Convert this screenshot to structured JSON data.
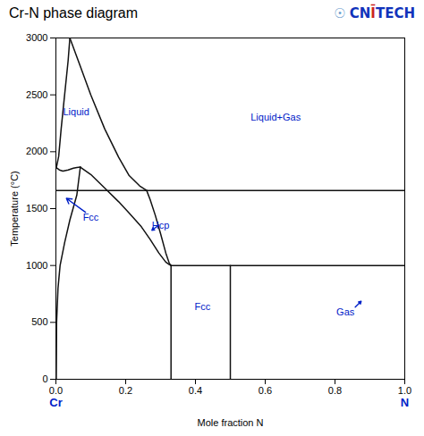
{
  "chart_data": {
    "type": "line",
    "title": "Cr-N phase diagram",
    "xlabel": "Mole fraction N",
    "ylabel": "Temperature (°C)",
    "xlim": [
      0,
      1.0
    ],
    "ylim": [
      0,
      3000
    ],
    "xticks": [
      {
        "value": 0,
        "label": "0.0"
      },
      {
        "value": 0.2,
        "label": "0.2"
      },
      {
        "value": 0.4,
        "label": "0.4"
      },
      {
        "value": 0.6,
        "label": "0.6"
      },
      {
        "value": 0.8,
        "label": "0.8"
      },
      {
        "value": 1.0,
        "label": "1.0"
      }
    ],
    "yticks": [
      0,
      500,
      1000,
      1500,
      2000,
      2500,
      3000
    ],
    "grid": false,
    "series": [
      {
        "color": "#111111",
        "x": [
          0.04,
          0.035,
          0.025,
          0.015,
          0.008,
          0.004,
          0.002,
          0.001
        ],
        "values": [
          3000,
          2800,
          2500,
          2200,
          1960,
          1900,
          1870,
          1860
        ]
      },
      {
        "color": "#111111",
        "x": [
          0.04,
          0.07,
          0.1,
          0.14,
          0.18,
          0.21,
          0.24,
          0.26
        ],
        "values": [
          3000,
          2750,
          2500,
          2200,
          1950,
          1790,
          1700,
          1660
        ]
      },
      {
        "color": "#111111",
        "x": [
          0.001,
          0.01,
          0.02,
          0.035,
          0.05,
          0.06,
          0.07
        ],
        "values": [
          1860,
          1840,
          1830,
          1840,
          1855,
          1862,
          1865
        ]
      },
      {
        "color": "#111111",
        "x": [
          0.07,
          0.06,
          0.04,
          0.025,
          0.012,
          0.006,
          0.002,
          0.001
        ],
        "values": [
          1865,
          1620,
          1400,
          1200,
          1000,
          800,
          500,
          0
        ]
      },
      {
        "color": "#111111",
        "x": [
          0.07,
          0.1,
          0.14,
          0.18,
          0.21,
          0.245,
          0.27,
          0.295,
          0.315,
          0.325,
          0.33
        ],
        "values": [
          1865,
          1800,
          1680,
          1560,
          1460,
          1340,
          1230,
          1110,
          1030,
          1008,
          1000
        ]
      },
      {
        "color": "#111111",
        "x": [
          0.26,
          0.27,
          0.285,
          0.3,
          0.315,
          0.325,
          0.33
        ],
        "values": [
          1660,
          1580,
          1440,
          1280,
          1110,
          1020,
          1000
        ]
      },
      {
        "color": "#111111",
        "x": [
          0.0,
          1.0
        ],
        "values": [
          1660,
          1660
        ]
      },
      {
        "color": "#111111",
        "x": [
          0.33,
          1.0
        ],
        "values": [
          1000,
          1000
        ]
      },
      {
        "color": "#111111",
        "x": [
          0.33,
          0.33
        ],
        "values": [
          0,
          1000
        ]
      },
      {
        "color": "#111111",
        "x": [
          0.5,
          0.5
        ],
        "values": [
          0,
          1000
        ]
      }
    ],
    "annotations": [
      {
        "text": "Liquid",
        "x": 0.058,
        "y": 2350,
        "color": "#0020c8"
      },
      {
        "text": "Liquid+Gas",
        "x": 0.63,
        "y": 2300,
        "color": "#0020c8"
      },
      {
        "text": "Fcc",
        "x": 0.1,
        "y": 1420,
        "color": "#0020c8"
      },
      {
        "text": "Hcp",
        "x": 0.3,
        "y": 1350,
        "color": "#0020c8"
      },
      {
        "text": "Fcc",
        "x": 0.42,
        "y": 640,
        "color": "#0020c8"
      },
      {
        "text": "Gas",
        "x": 0.83,
        "y": 590,
        "color": "#0020c8"
      }
    ],
    "arrows": [
      {
        "x1": 0.085,
        "y1": 1468,
        "x2": 0.03,
        "y2": 1590,
        "color": "#0020c8"
      },
      {
        "x1": 0.295,
        "y1": 1355,
        "x2": 0.275,
        "y2": 1310,
        "color": "#0020c8"
      },
      {
        "x1": 0.858,
        "y1": 635,
        "x2": 0.875,
        "y2": 685,
        "color": "#0020c8"
      }
    ],
    "x_end_labels": [
      {
        "text": "Cr",
        "x": 0.0,
        "color": "#0020c8"
      },
      {
        "text": "N",
        "x": 1.0,
        "color": "#0020c8"
      }
    ],
    "logo": [
      {
        "text": "☉",
        "color": "#6699cc"
      },
      {
        "text": "CN",
        "color": "#1133bb"
      },
      {
        "text": "Ī",
        "color": "#cc2222"
      },
      {
        "text": "TECH",
        "color": "#1133bb"
      }
    ]
  }
}
